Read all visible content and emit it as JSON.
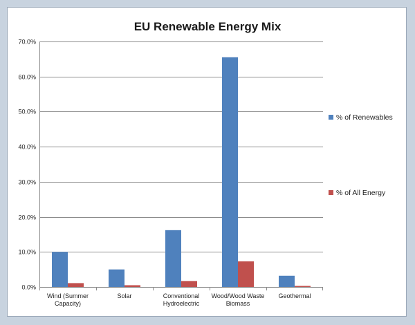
{
  "chart_data": {
    "type": "bar",
    "title": "EU Renewable Energy Mix",
    "xlabel": "",
    "ylabel": "",
    "ylim": [
      0,
      70
    ],
    "yticks": [
      "0.0%",
      "10.0%",
      "20.0%",
      "30.0%",
      "40.0%",
      "50.0%",
      "60.0%",
      "70.0%"
    ],
    "categories": [
      [
        "Wind (Summer",
        "Capacity)"
      ],
      [
        "Solar"
      ],
      [
        "Conventional",
        "Hydroelectric"
      ],
      [
        "Wood/Wood Waste",
        "Biomass"
      ],
      [
        "Geothermal"
      ]
    ],
    "series": [
      {
        "name": "% of Renewables",
        "color": "#4f81bd",
        "values": [
          10.0,
          5.0,
          16.2,
          65.5,
          3.2
        ]
      },
      {
        "name": "% of All Energy",
        "color": "#c0504d",
        "values": [
          1.1,
          0.5,
          1.7,
          7.3,
          0.3
        ]
      }
    ],
    "grid": true,
    "legend_position": "right"
  }
}
